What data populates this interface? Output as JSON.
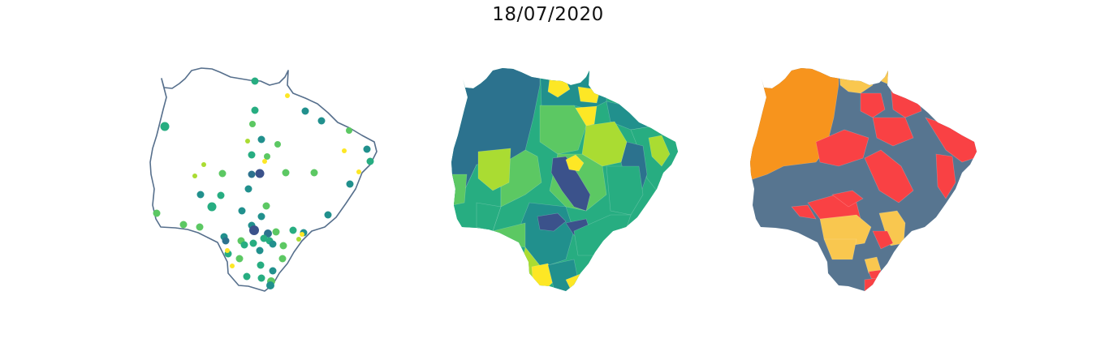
{
  "figure": {
    "title": "18/07/2020"
  },
  "colors": {
    "outline": "#566f8c",
    "viridis": [
      "#3b528b",
      "#2c728e",
      "#21908d",
      "#27ad81",
      "#5cc863",
      "#aadc32",
      "#fde725"
    ],
    "categories": {
      "orange": "#f7941d",
      "slate": "#577590",
      "red": "#f94144",
      "yellow": "#f9c74f"
    }
  },
  "maps": [
    {
      "name": "points-map",
      "style": "outline with proportional colored dots"
    },
    {
      "name": "choropleth-viridis",
      "style": "municipality fill, continuous color scale"
    },
    {
      "name": "choropleth-categorical",
      "style": "municipality fill, four categories"
    }
  ]
}
